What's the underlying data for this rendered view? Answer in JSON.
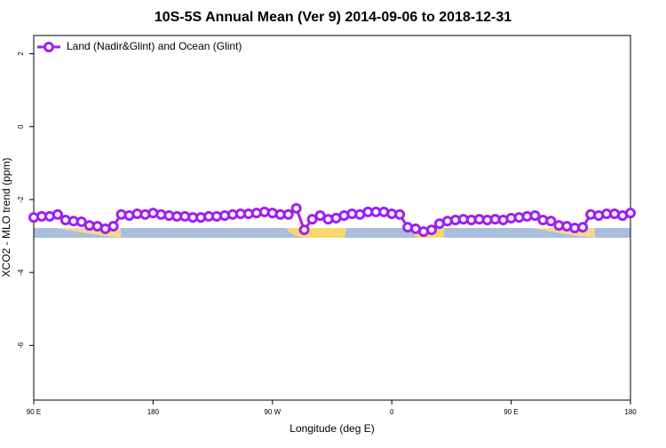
{
  "chart_data": {
    "type": "line",
    "title": "10S-5S Annual Mean (Ver 9)   2014-09-06 to 2018-12-31",
    "xlabel": "Longitude (deg E)",
    "ylabel": "XCO2 - MLO trend (ppm)",
    "x": [
      90,
      96,
      102,
      108,
      114,
      120,
      126,
      132,
      138,
      144,
      150,
      156,
      162,
      168,
      174,
      180,
      186,
      192,
      198,
      204,
      210,
      216,
      222,
      228,
      234,
      240,
      246,
      252,
      258,
      264,
      270,
      276,
      282,
      288,
      294,
      300,
      306,
      312,
      318,
      324,
      330,
      336,
      342,
      348,
      354,
      360,
      366,
      372,
      378,
      384,
      390,
      396,
      402,
      408,
      414,
      420,
      426,
      432,
      438,
      444,
      450,
      456,
      462,
      468,
      474,
      480,
      486,
      492,
      498,
      504,
      510,
      516,
      522,
      528,
      534,
      540
    ],
    "series": [
      {
        "name": "Land (Nadir&Glint) and Ocean (Glint)",
        "color": "#a020f0",
        "values": [
          -2.49,
          -2.46,
          -2.46,
          -2.41,
          -2.56,
          -2.59,
          -2.61,
          -2.71,
          -2.73,
          -2.8,
          -2.73,
          -2.41,
          -2.44,
          -2.39,
          -2.41,
          -2.37,
          -2.41,
          -2.44,
          -2.46,
          -2.46,
          -2.49,
          -2.49,
          -2.46,
          -2.46,
          -2.44,
          -2.41,
          -2.39,
          -2.39,
          -2.37,
          -2.34,
          -2.37,
          -2.41,
          -2.41,
          -2.24,
          -2.83,
          -2.54,
          -2.44,
          -2.54,
          -2.51,
          -2.44,
          -2.39,
          -2.41,
          -2.34,
          -2.34,
          -2.34,
          -2.39,
          -2.41,
          -2.76,
          -2.8,
          -2.88,
          -2.83,
          -2.66,
          -2.59,
          -2.56,
          -2.54,
          -2.56,
          -2.54,
          -2.56,
          -2.54,
          -2.56,
          -2.51,
          -2.49,
          -2.46,
          -2.44,
          -2.56,
          -2.59,
          -2.71,
          -2.73,
          -2.78,
          -2.76,
          -2.41,
          -2.44,
          -2.39,
          -2.39,
          -2.44,
          -2.37
        ]
      }
    ],
    "xlim": [
      90,
      540
    ],
    "ylim": [
      -7.5,
      2.5
    ],
    "xticks": [
      {
        "value": 90,
        "label": "90 E"
      },
      180,
      {
        "value": 270,
        "label": "90 W"
      },
      {
        "value": 360,
        "label": "0"
      },
      {
        "value": 450,
        "label": "90 E"
      },
      {
        "value": 540,
        "label": "180"
      }
    ],
    "yticks": [
      -6,
      -4,
      -2,
      0,
      2
    ],
    "legend": "top-left"
  }
}
